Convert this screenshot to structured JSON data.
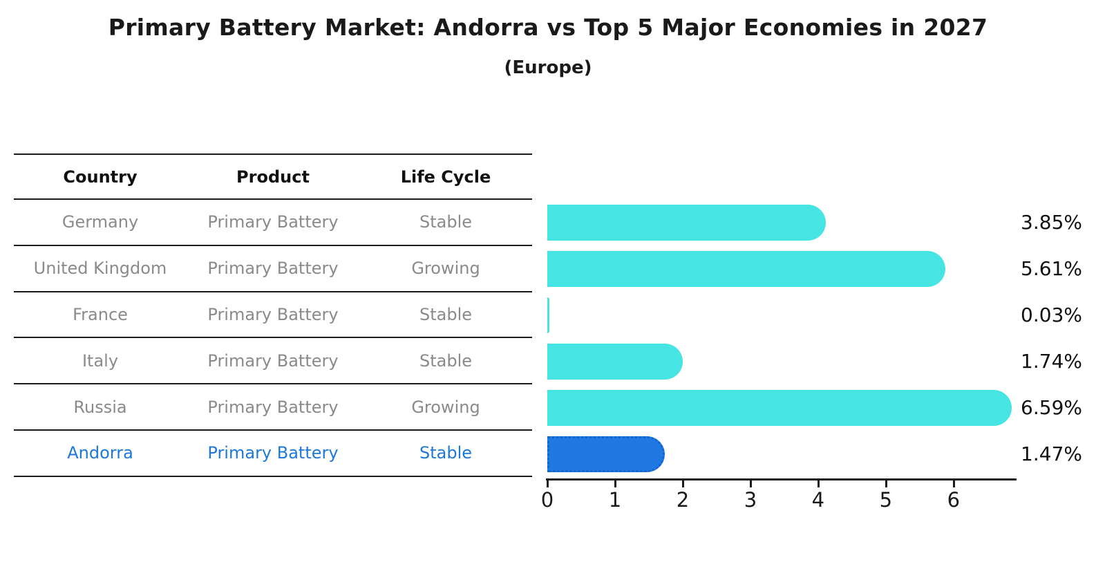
{
  "header": {
    "title": "Primary Battery Market: Andorra vs Top 5 Major Economies in 2027",
    "subtitle": "(Europe)"
  },
  "table": {
    "columns": [
      "Country",
      "Product",
      "Life Cycle"
    ],
    "rows": [
      {
        "country": "Germany",
        "product": "Primary Battery",
        "life_cycle": "Stable",
        "highlight": false
      },
      {
        "country": "United Kingdom",
        "product": "Primary Battery",
        "life_cycle": "Growing",
        "highlight": false
      },
      {
        "country": "France",
        "product": "Primary Battery",
        "life_cycle": "Stable",
        "highlight": false
      },
      {
        "country": "Italy",
        "product": "Primary Battery",
        "life_cycle": "Stable",
        "highlight": false
      },
      {
        "country": "Russia",
        "product": "Primary Battery",
        "life_cycle": "Growing",
        "highlight": false
      },
      {
        "country": "Andorra",
        "product": "Primary Battery",
        "life_cycle": "Stable",
        "highlight": true
      }
    ]
  },
  "chart_data": {
    "type": "bar",
    "orientation": "horizontal",
    "title": "Primary Battery Market: Andorra vs Top 5 Major Economies in 2027",
    "subtitle": "(Europe)",
    "categories": [
      "Germany",
      "United Kingdom",
      "France",
      "Italy",
      "Russia",
      "Andorra"
    ],
    "values": [
      3.85,
      5.61,
      0.03,
      1.74,
      6.59,
      1.47
    ],
    "value_labels": [
      "3.85%",
      "5.61%",
      "0.03%",
      "1.74%",
      "6.59%",
      "1.47%"
    ],
    "xlabel": "",
    "ylabel": "",
    "xlim": [
      0,
      6.92
    ],
    "xticks": [
      "0",
      "1",
      "2",
      "3",
      "4",
      "5",
      "6"
    ],
    "grid": false,
    "legend": "none",
    "highlight_index": 5
  },
  "colors": {
    "bar": "#46E4E2",
    "highlight_bar": "#2079E3",
    "highlight_border": "#1462CC",
    "highlight_text": "#1C78D9",
    "row_text": "#8A8A8A",
    "header_text": "#111111",
    "axis": "#1A1A1A"
  }
}
